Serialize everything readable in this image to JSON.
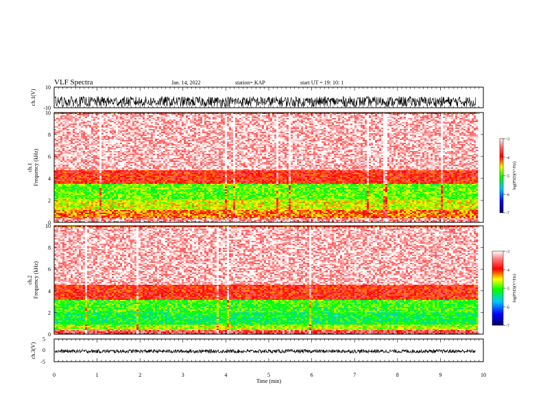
{
  "header": {
    "title": "VLF Spectra",
    "date": "Jan. 14, 2022",
    "station": "station= KAP",
    "start": "start UT =  19: 10: 1"
  },
  "chart_data": [
    {
      "type": "line",
      "name": "ch1-waveform",
      "ylabel": "ch.1(V)",
      "ylim": [
        -10,
        10
      ],
      "y_ticks": [
        "10",
        "-10"
      ],
      "xlim": [
        0,
        10
      ],
      "data_end_min": 9.83,
      "description_values": {
        "amplitude_range_v": [
          -10,
          10
        ],
        "typical_envelope_v": [
          -9,
          1
        ]
      }
    },
    {
      "type": "heatmap",
      "name": "ch1-spectrogram",
      "ylabel": "ch.1\nFrequency (kHz)",
      "y_ticks": [
        "0",
        "2",
        "4",
        "6",
        "8",
        "10"
      ],
      "ylim": [
        0,
        10
      ],
      "xlim": [
        0,
        10
      ],
      "colorbar": {
        "label": "log(PSD)(V²/Hz)",
        "ticks": [
          "-3",
          "-4",
          "-5",
          "-6",
          "-7"
        ],
        "range": [
          -7,
          -3
        ]
      },
      "bands_khz_psd": [
        [
          0,
          0.5,
          -3.3
        ],
        [
          0.5,
          1.2,
          -4.2
        ],
        [
          1.2,
          2.2,
          -4.6
        ],
        [
          2.2,
          3.6,
          -4.9
        ],
        [
          3.6,
          4.8,
          -3.9
        ],
        [
          4.8,
          10,
          -3.2
        ]
      ]
    },
    {
      "type": "heatmap",
      "name": "ch2-spectrogram",
      "ylabel": "ch.2\nFrequency (kHz)",
      "y_ticks": [
        "0",
        "2",
        "4",
        "6",
        "8",
        "10"
      ],
      "ylim": [
        0,
        10
      ],
      "xlim": [
        0,
        10
      ],
      "colorbar": {
        "label": "log(PSD)(V²/Hz)",
        "ticks": [
          "-3",
          "-4",
          "-5",
          "-6",
          "-7"
        ],
        "range": [
          -7,
          -3
        ]
      },
      "bands_khz_psd": [
        [
          0,
          0.4,
          -3.6
        ],
        [
          0.4,
          1.0,
          -4.7
        ],
        [
          1.0,
          2.1,
          -5.2
        ],
        [
          2.1,
          3.2,
          -5.0
        ],
        [
          3.2,
          4.6,
          -3.9
        ],
        [
          4.6,
          10,
          -3.2
        ]
      ]
    },
    {
      "type": "line",
      "name": "ch3-waveform",
      "ylabel": "ch.3(V)",
      "ylim": [
        -5,
        5
      ],
      "y_ticks": [
        "5",
        "0",
        "-5"
      ],
      "xlim": [
        0,
        10
      ],
      "data_end_min": 9.83,
      "description_values": {
        "amplitude_range_v": [
          -1.2,
          0.4
        ]
      }
    }
  ],
  "xaxis": {
    "label": "Time (min)",
    "ticks": [
      "0",
      "1",
      "2",
      "3",
      "4",
      "5",
      "6",
      "7",
      "8",
      "9",
      "10"
    ],
    "range": [
      0,
      10
    ]
  },
  "colors": {
    "axis": "#000000",
    "background": "#ffffff"
  }
}
